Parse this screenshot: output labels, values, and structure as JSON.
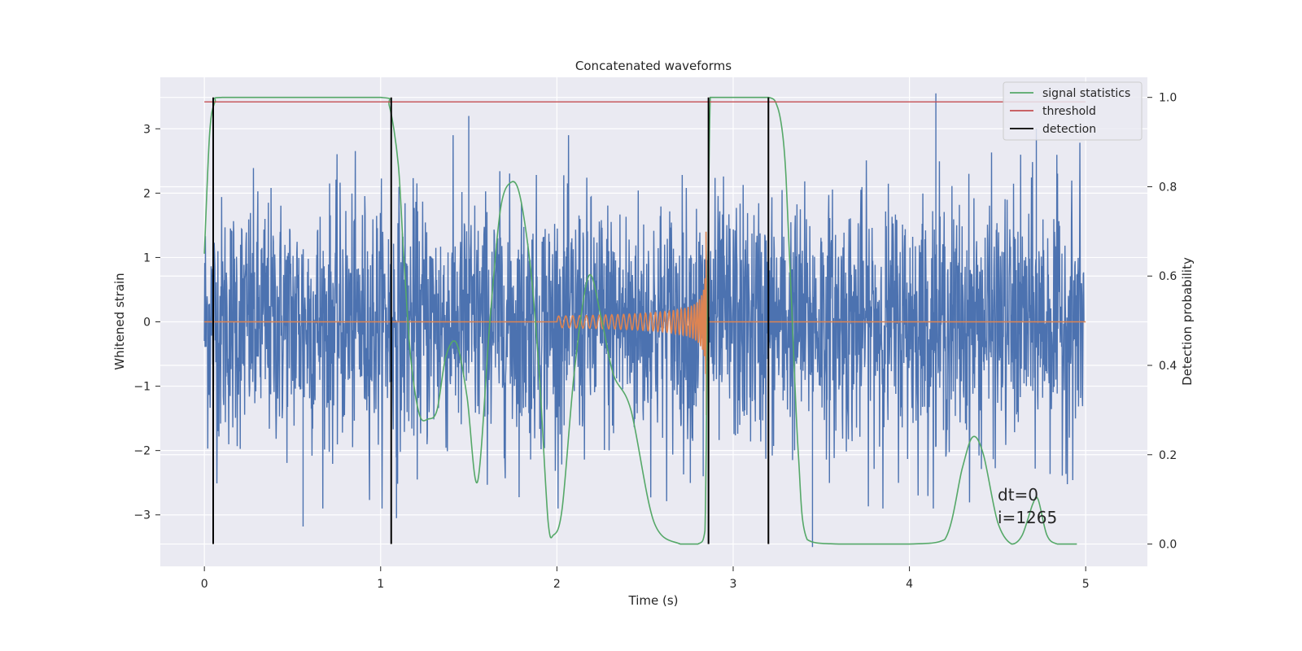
{
  "chart_data": {
    "type": "line",
    "title": "Concatenated waveforms",
    "xlabel": "Time (s)",
    "ylabel": "Whitened strain",
    "y2label": "Detection probability",
    "xlim": [
      -0.25,
      5.35
    ],
    "ylim": [
      -3.8,
      3.8
    ],
    "y2lim": [
      -0.05,
      1.045
    ],
    "xticks": [
      0,
      1,
      2,
      3,
      4,
      5
    ],
    "yticks": [
      -3,
      -2,
      -1,
      0,
      1,
      2,
      3
    ],
    "y2ticks": [
      0.0,
      0.2,
      0.4,
      0.6,
      0.8,
      1.0
    ],
    "grid": true,
    "legend_position": "top-right",
    "legend": [
      {
        "label": "signal statistics",
        "color": "#55a868"
      },
      {
        "label": "threshold",
        "color": "#c44e52"
      },
      {
        "label": "detection",
        "color": "#000000"
      }
    ],
    "series": [
      {
        "id": "strain",
        "color": "#4c72b0",
        "axis": "left",
        "description_kind": "noise",
        "x_range": [
          0,
          4.99
        ],
        "typical_band": [
          -2.2,
          2.2
        ],
        "peaks": [
          [
            0.05,
            -2.45
          ],
          [
            0.56,
            -3.18
          ],
          [
            1.09,
            -3.05
          ],
          [
            1.5,
            3.2
          ],
          [
            2.83,
            -2.4
          ],
          [
            3.45,
            -3.5
          ],
          [
            4.15,
            3.55
          ],
          [
            4.72,
            3.0
          ]
        ]
      },
      {
        "id": "injected-signal",
        "color": "#dd8452",
        "axis": "left",
        "zero_baseline": [
          0,
          5
        ],
        "chirp_start": 2.0,
        "chirp_end": 2.85,
        "peak_amplitude": 1.4,
        "end_min": -1.45
      },
      {
        "name": "signal statistics",
        "color": "#55a868",
        "axis": "right",
        "x": [
          0.0,
          0.03,
          0.06,
          0.1,
          0.5,
          1.0,
          1.05,
          1.1,
          1.13,
          1.17,
          1.22,
          1.27,
          1.32,
          1.37,
          1.43,
          1.49,
          1.55,
          1.62,
          1.68,
          1.74,
          1.79,
          1.85,
          1.9,
          1.95,
          1.98,
          2.03,
          2.1,
          2.18,
          2.25,
          2.32,
          2.42,
          2.55,
          2.7,
          2.8,
          2.84,
          2.87,
          2.92,
          3.0,
          3.2,
          3.25,
          3.28,
          3.3,
          3.33,
          3.37,
          3.42,
          3.6,
          4.0,
          4.2,
          4.3,
          4.36,
          4.42,
          4.5,
          4.58,
          4.64,
          4.7,
          4.73,
          4.78,
          4.84,
          4.95
        ],
        "y": [
          0.65,
          0.92,
          0.99,
          1.0,
          1.0,
          1.0,
          0.98,
          0.85,
          0.65,
          0.42,
          0.29,
          0.28,
          0.3,
          0.42,
          0.45,
          0.33,
          0.14,
          0.5,
          0.75,
          0.81,
          0.78,
          0.62,
          0.38,
          0.05,
          0.02,
          0.08,
          0.39,
          0.6,
          0.51,
          0.38,
          0.3,
          0.05,
          0.0,
          0.0,
          0.03,
          1.0,
          1.0,
          1.0,
          1.0,
          0.98,
          0.92,
          0.82,
          0.55,
          0.2,
          0.01,
          0.0,
          0.0,
          0.01,
          0.17,
          0.24,
          0.2,
          0.05,
          0.0,
          0.02,
          0.09,
          0.1,
          0.02,
          0.0,
          0.0
        ]
      },
      {
        "name": "threshold",
        "color": "#c44e52",
        "axis": "right",
        "x": [
          0,
          5
        ],
        "y": [
          0.99,
          0.99
        ]
      }
    ],
    "detections": [
      0.05,
      1.06,
      2.86,
      3.2
    ],
    "annotations": [
      "dt=0",
      "i=1265"
    ]
  }
}
